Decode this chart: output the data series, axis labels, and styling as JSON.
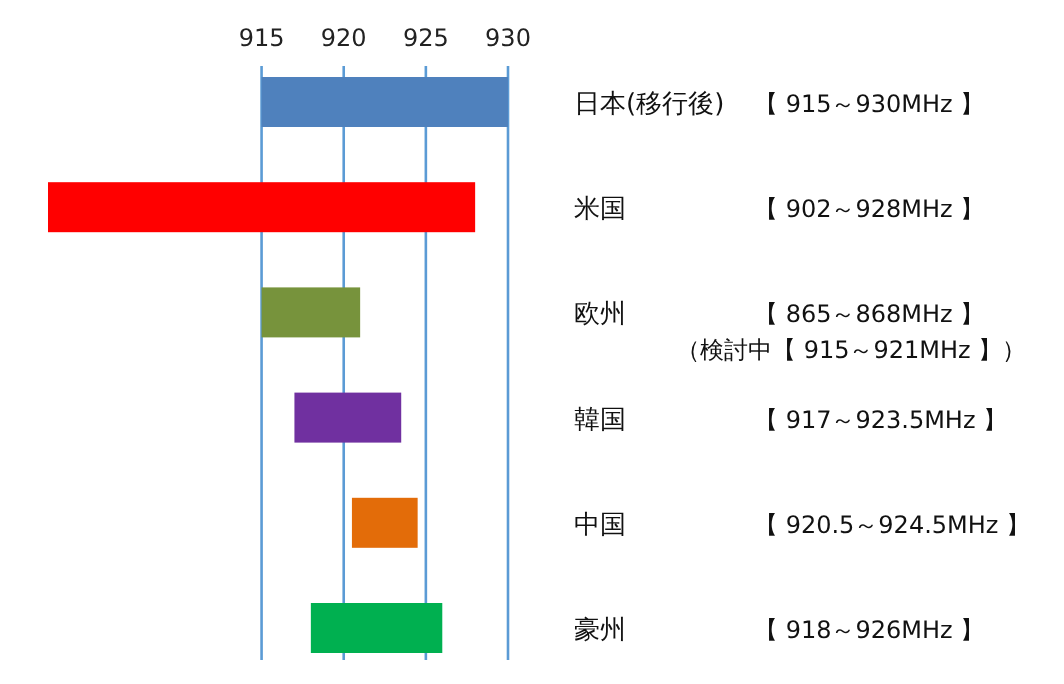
{
  "chart_data": {
    "type": "bar",
    "orientation": "horizontal",
    "categories": [
      "日本(移行後)",
      "米国",
      "欧州",
      "韓国",
      "中国",
      "豪州"
    ],
    "base": [
      915,
      902,
      915,
      917,
      920.5,
      918
    ],
    "values": [
      15,
      26,
      6,
      6.5,
      4,
      8
    ],
    "colors": [
      "#4f81bd",
      "#ff0000",
      "#77933c",
      "#7030a0",
      "#e36c09",
      "#00b050"
    ],
    "annotations": [
      "【 915～930MHz 】",
      "【 902～928MHz 】",
      "【 865～868MHz 】（検討中【 915～921MHz 】）",
      "【 917～923.5MHz 】",
      "【 920.5～924.5MHz 】",
      "【 918～926MHz 】"
    ],
    "xlim": [
      902,
      930
    ],
    "xticks": [
      915,
      920,
      925,
      930
    ],
    "grid": "x"
  }
}
